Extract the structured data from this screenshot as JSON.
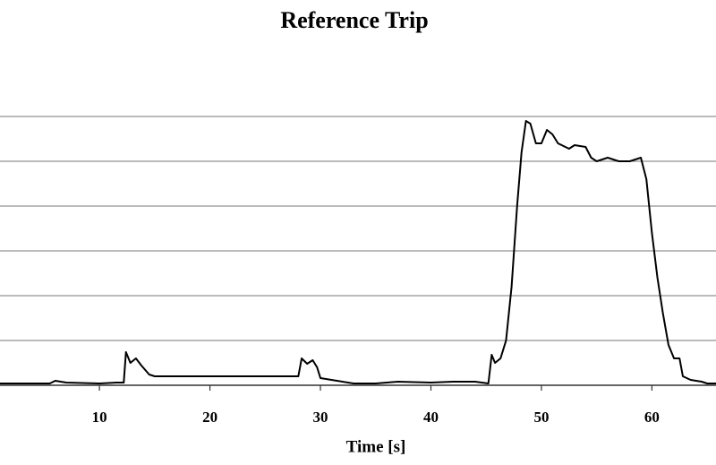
{
  "chart_data": {
    "type": "line",
    "title": "Reference Trip",
    "x_label": "Time [s]",
    "color": "#000000",
    "grid": true,
    "ytick_labels": false,
    "xlim": [
      1,
      65.8
    ],
    "xticks": [
      10,
      20,
      30,
      40,
      50,
      60
    ],
    "ylim": [
      0,
      6
    ],
    "yticks": [
      0,
      1,
      2,
      3,
      4,
      5,
      6
    ],
    "x": [
      1,
      5.5,
      6,
      7,
      10,
      11.5,
      12.2,
      12.4,
      12.8,
      13.3,
      13.8,
      14.5,
      15,
      20,
      25,
      28,
      28.3,
      28.8,
      29.3,
      29.7,
      30,
      31,
      33,
      35,
      37,
      40,
      42,
      44,
      45.2,
      45.5,
      45.8,
      46.3,
      46.8,
      47.3,
      47.8,
      48.2,
      48.6,
      49,
      49.5,
      50,
      50.5,
      51,
      51.5,
      52.5,
      53,
      54,
      54.5,
      55,
      56,
      57,
      58,
      59,
      59.5,
      60,
      60.5,
      61,
      61.5,
      62,
      62.5,
      62.8,
      63.5,
      64.5,
      65,
      65.8
    ],
    "values": [
      0.04,
      0.04,
      0.1,
      0.06,
      0.04,
      0.06,
      0.06,
      0.74,
      0.5,
      0.6,
      0.44,
      0.24,
      0.2,
      0.2,
      0.2,
      0.2,
      0.6,
      0.48,
      0.56,
      0.4,
      0.16,
      0.12,
      0.04,
      0.04,
      0.08,
      0.06,
      0.08,
      0.08,
      0.04,
      0.68,
      0.5,
      0.6,
      1.0,
      2.2,
      4.0,
      5.2,
      5.9,
      5.84,
      5.4,
      5.4,
      5.7,
      5.6,
      5.4,
      5.28,
      5.36,
      5.32,
      5.08,
      5.0,
      5.08,
      5.0,
      5.0,
      5.08,
      4.6,
      3.4,
      2.4,
      1.6,
      0.9,
      0.6,
      0.6,
      0.2,
      0.12,
      0.08,
      0.04,
      0.04
    ]
  }
}
